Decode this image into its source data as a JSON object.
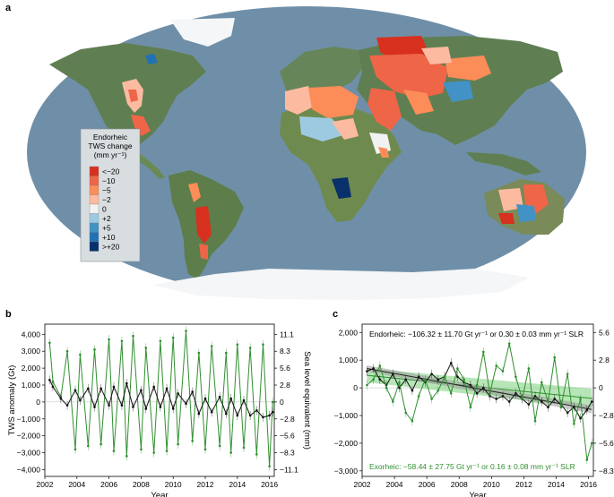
{
  "panels": {
    "a": "a",
    "b": "b",
    "c": "c"
  },
  "colors": {
    "ocean": "#6f8fa8",
    "land": "#5f7f52",
    "ice": "#ffffff",
    "green_series": "#2f8f2f",
    "black_series": "#111111",
    "band_gray": "#9a9a9a",
    "band_green": "#7ccf7c"
  },
  "legend": {
    "title_line1": "Endorheic",
    "title_line2": "TWS change",
    "title_line3": "(mm yr⁻¹)",
    "entries": [
      {
        "label": "<−20",
        "color": "#d7301f"
      },
      {
        "label": "−10",
        "color": "#ef6548"
      },
      {
        "label": "−5",
        "color": "#fc8d59"
      },
      {
        "label": "−2",
        "color": "#fcbba1"
      },
      {
        "label": "0",
        "color": "#f2f2f2"
      },
      {
        "label": "+2",
        "color": "#9ecae1"
      },
      {
        "label": "+5",
        "color": "#4292c6"
      },
      {
        "label": "+10",
        "color": "#2171b5"
      },
      {
        "label": ">+20",
        "color": "#08306b"
      }
    ]
  },
  "chart_data": [
    {
      "panel": "a",
      "type": "map",
      "legend_placement": "left-center"
    },
    {
      "panel": "b",
      "type": "line",
      "xlabel": "Year",
      "ylabel": "TWS anomaly (Gt)",
      "ylabel_right": "Sea level equivalent (mm)",
      "xlim": [
        2002,
        2016.3
      ],
      "ylim": [
        -4400,
        4600
      ],
      "x_ticks": [
        "2002",
        "2004",
        "2006",
        "2008",
        "2010",
        "2012",
        "2014",
        "2016"
      ],
      "y_ticks": [
        "4,000",
        "3,000",
        "2,000",
        "1,000",
        "0",
        "−1,000",
        "−2,000",
        "−3,000",
        "−4,000"
      ],
      "y_tick_values": [
        4000,
        3000,
        2000,
        1000,
        0,
        -1000,
        -2000,
        -3000,
        -4000
      ],
      "y2_ticks": [
        "11.1",
        "8.3",
        "5.6",
        "2.8",
        "0",
        "−2.8",
        "−5.6",
        "−8.3",
        "−11.1"
      ],
      "y2_tick_values": [
        4000,
        3000,
        2000,
        1000,
        0,
        -1000,
        -2000,
        -3000,
        -4000
      ],
      "series": [
        {
          "color": "green",
          "x": [
            2002.3,
            2002.5,
            2003.0,
            2003.4,
            2003.9,
            2004.2,
            2004.7,
            2005.1,
            2005.5,
            2006.0,
            2006.3,
            2006.8,
            2007.1,
            2007.5,
            2008.0,
            2008.3,
            2008.8,
            2009.2,
            2009.6,
            2010.0,
            2010.3,
            2010.8,
            2011.2,
            2011.6,
            2012.0,
            2012.4,
            2012.9,
            2013.3,
            2013.6,
            2014.0,
            2014.4,
            2014.8,
            2015.2,
            2015.6,
            2016.0,
            2016.2
          ],
          "y": [
            3500,
            1200,
            300,
            3000,
            -2800,
            2800,
            -2600,
            3100,
            -2500,
            3700,
            -2900,
            3600,
            -3200,
            3900,
            -2800,
            3200,
            -3000,
            3600,
            -2900,
            3800,
            -2500,
            4200,
            -2300,
            2900,
            -2800,
            3300,
            -2600,
            2900,
            -3000,
            3400,
            -2700,
            3200,
            -3100,
            3400,
            -3800,
            0
          ]
        },
        {
          "color": "black",
          "x": [
            2002.3,
            2002.5,
            2003.0,
            2003.4,
            2003.9,
            2004.2,
            2004.7,
            2005.1,
            2005.5,
            2006.0,
            2006.3,
            2006.8,
            2007.1,
            2007.5,
            2008.0,
            2008.3,
            2008.8,
            2009.2,
            2009.6,
            2010.0,
            2010.3,
            2010.8,
            2011.2,
            2011.6,
            2012.0,
            2012.4,
            2012.9,
            2013.3,
            2013.6,
            2014.0,
            2014.4,
            2014.8,
            2015.2,
            2015.6,
            2016.0,
            2016.2
          ],
          "y": [
            1300,
            900,
            200,
            -200,
            700,
            100,
            800,
            -300,
            800,
            -200,
            900,
            -200,
            1100,
            -300,
            700,
            -400,
            900,
            -300,
            800,
            -400,
            500,
            -100,
            600,
            -700,
            200,
            -600,
            300,
            -700,
            200,
            -800,
            100,
            -800,
            -500,
            -900,
            -800,
            -600
          ]
        }
      ]
    },
    {
      "panel": "c",
      "type": "line",
      "xlabel": "Year",
      "xlim": [
        2002,
        2016.3
      ],
      "ylim": [
        -3200,
        2300
      ],
      "x_ticks": [
        "2002",
        "2004",
        "2006",
        "2008",
        "2010",
        "2012",
        "2014",
        "2016"
      ],
      "y_ticks": [
        "2,000",
        "1,000",
        "0",
        "−1,000",
        "−2,000",
        "−3,000"
      ],
      "y_tick_values": [
        2000,
        1000,
        0,
        -1000,
        -2000,
        -3000
      ],
      "y2_ticks": [
        "5.6",
        "2.8",
        "0",
        "−2.8",
        "−5.6",
        "−8.3"
      ],
      "y2_tick_values": [
        2000,
        1000,
        0,
        -1000,
        -2000,
        -3000
      ],
      "annotation_endorheic": "Endorheic: −106.32 ± 11.70 Gt yr⁻¹ or 0.30 ± 0.03 mm yr⁻¹ SLR",
      "annotation_exorheic": "Exorheic: −58.44 ± 27.75 Gt yr⁻¹ or 0.16 ± 0.08 mm yr⁻¹ SLR",
      "trend_endorheic": {
        "x": [
          2002.3,
          2016.2
        ],
        "y": [
          700,
          -780
        ]
      },
      "trend_exorheic": {
        "x": [
          2002.3,
          2016.2
        ],
        "y": [
          450,
          -380
        ]
      },
      "series": [
        {
          "color": "black",
          "x": [
            2002.3,
            2002.7,
            2003.1,
            2003.5,
            2003.9,
            2004.3,
            2004.7,
            2005.1,
            2005.5,
            2005.9,
            2006.3,
            2006.7,
            2007.1,
            2007.5,
            2007.9,
            2008.3,
            2008.7,
            2009.1,
            2009.5,
            2009.9,
            2010.3,
            2010.7,
            2011.1,
            2011.5,
            2011.9,
            2012.3,
            2012.7,
            2013.1,
            2013.5,
            2013.9,
            2014.3,
            2014.7,
            2015.1,
            2015.5,
            2015.9,
            2016.2
          ],
          "y": [
            600,
            700,
            300,
            100,
            500,
            0,
            300,
            -100,
            400,
            200,
            500,
            300,
            400,
            900,
            400,
            200,
            100,
            -200,
            0,
            -300,
            -400,
            -300,
            -500,
            -200,
            -400,
            -600,
            -300,
            -500,
            -700,
            -400,
            -600,
            -900,
            -700,
            -1100,
            -800,
            -500
          ]
        },
        {
          "color": "green",
          "x": [
            2002.3,
            2002.7,
            2003.1,
            2003.5,
            2003.9,
            2004.3,
            2004.7,
            2005.1,
            2005.5,
            2005.9,
            2006.3,
            2006.7,
            2007.1,
            2007.5,
            2007.9,
            2008.3,
            2008.7,
            2009.1,
            2009.5,
            2009.9,
            2010.3,
            2010.7,
            2011.1,
            2011.5,
            2011.9,
            2012.3,
            2012.7,
            2013.1,
            2013.5,
            2013.9,
            2014.3,
            2014.7,
            2015.1,
            2015.5,
            2015.9,
            2016.2
          ],
          "y": [
            100,
            300,
            800,
            0,
            -500,
            200,
            -900,
            -1200,
            -300,
            300,
            -400,
            -100,
            400,
            -200,
            700,
            300,
            -700,
            100,
            1300,
            -200,
            800,
            600,
            1600,
            400,
            -400,
            700,
            -1200,
            200,
            -500,
            1100,
            -700,
            500,
            -1300,
            -400,
            -2600,
            -2000
          ]
        }
      ]
    }
  ]
}
